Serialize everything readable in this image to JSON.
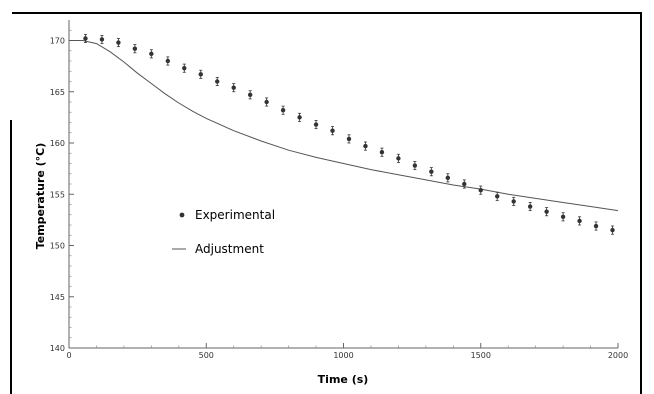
{
  "chart_data": {
    "type": "scatter",
    "xlabel": "Time (s)",
    "ylabel": "Temperature (°C)",
    "xlim": [
      0,
      2000
    ],
    "ylim": [
      140,
      172
    ],
    "x_ticks": [
      0,
      500,
      1000,
      1500,
      2000
    ],
    "y_ticks": [
      140,
      145,
      150,
      155,
      160,
      165,
      170
    ],
    "legend_position": "center-left",
    "series": [
      {
        "name": "Experimental",
        "kind": "points-with-error-bars",
        "color": "#333333",
        "x": [
          60,
          120,
          180,
          240,
          300,
          360,
          420,
          480,
          540,
          600,
          660,
          720,
          780,
          840,
          900,
          960,
          1020,
          1080,
          1140,
          1200,
          1260,
          1320,
          1380,
          1440,
          1500,
          1560,
          1620,
          1680,
          1740,
          1800,
          1860,
          1920,
          1980
        ],
        "y": [
          170.2,
          170.1,
          169.8,
          169.2,
          168.7,
          168.0,
          167.3,
          166.7,
          166.0,
          165.4,
          164.7,
          164.0,
          163.2,
          162.5,
          161.8,
          161.2,
          160.4,
          159.7,
          159.1,
          158.5,
          157.8,
          157.2,
          156.6,
          156.0,
          155.4,
          154.8,
          154.3,
          153.8,
          153.3,
          152.8,
          152.4,
          151.9,
          151.5
        ],
        "error": 0.4
      },
      {
        "name": "Adjustment",
        "kind": "line",
        "color": "#555555",
        "x": [
          0,
          50,
          100,
          150,
          200,
          250,
          300,
          350,
          400,
          450,
          500,
          600,
          700,
          800,
          900,
          1000,
          1100,
          1200,
          1300,
          1400,
          1500,
          1600,
          1700,
          1800,
          1900,
          2000
        ],
        "y": [
          170.0,
          170.0,
          169.7,
          168.9,
          167.9,
          166.8,
          165.8,
          164.8,
          163.9,
          163.1,
          162.4,
          161.2,
          160.2,
          159.3,
          158.6,
          158.0,
          157.4,
          156.9,
          156.4,
          155.9,
          155.5,
          155.0,
          154.6,
          154.2,
          153.8,
          153.4
        ]
      }
    ]
  }
}
